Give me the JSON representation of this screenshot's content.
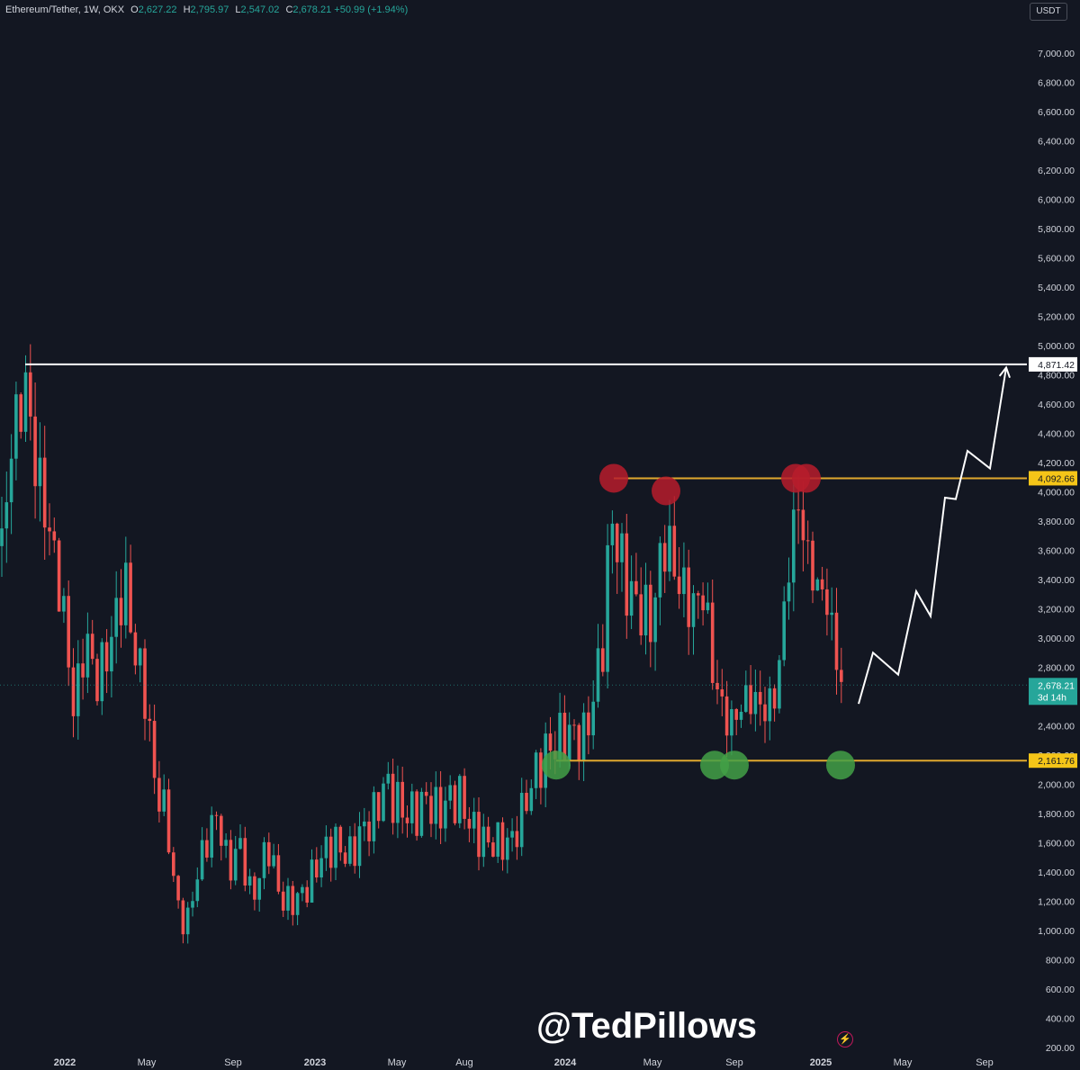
{
  "legend": {
    "symbol": "Ethereum/Tether, 1W, OKX",
    "o_label": "O",
    "o_value": "2,627.22",
    "h_label": "H",
    "h_value": "2,795.97",
    "l_label": "L",
    "l_value": "2,547.02",
    "c_label": "C",
    "c_value": "2,678.21",
    "change": "+50.99 (+1.94%)"
  },
  "currency_button": "USDT",
  "watermark": "@TedPillows",
  "colors": {
    "background": "#131722",
    "up": "#26a69a",
    "down": "#ef5350",
    "level": "#e0a82e",
    "resistance_marker": "#b71c2c",
    "support_marker": "#43a047",
    "ath_line": "#ffffff"
  },
  "chart_data": {
    "type": "candlestick",
    "timeframe": "1W",
    "x_tick_labels": [
      "2022",
      "May",
      "Sep",
      "2023",
      "May",
      "Aug",
      "2024",
      "May",
      "Sep",
      "2025",
      "May",
      "Sep"
    ],
    "y_tick_labels": [
      "200.00",
      "400.00",
      "600.00",
      "800.00",
      "1,000.00",
      "1,200.00",
      "1,400.00",
      "1,600.00",
      "1,800.00",
      "2,000.00",
      "2,200.00",
      "2,400.00",
      "2,600.00",
      "2,800.00",
      "3,000.00",
      "3,200.00",
      "3,400.00",
      "3,600.00",
      "3,800.00",
      "4,000.00",
      "4,200.00",
      "4,400.00",
      "4,600.00",
      "4,800.00",
      "5,000.00",
      "5,200.00",
      "5,400.00",
      "5,600.00",
      "5,800.00",
      "6,000.00",
      "6,200.00",
      "6,400.00",
      "6,600.00",
      "6,800.00",
      "7,000.00"
    ],
    "ylim": [
      200,
      7100
    ],
    "price_path": [
      [
        0,
        3500
      ],
      [
        14,
        4400
      ],
      [
        30,
        4750
      ],
      [
        36,
        4300
      ],
      [
        44,
        4050
      ],
      [
        56,
        3700
      ],
      [
        70,
        3200
      ],
      [
        82,
        2500
      ],
      [
        95,
        3000
      ],
      [
        108,
        2700
      ],
      [
        124,
        3000
      ],
      [
        138,
        3400
      ],
      [
        150,
        2900
      ],
      [
        162,
        2600
      ],
      [
        172,
        2000
      ],
      [
        184,
        1800
      ],
      [
        196,
        1200
      ],
      [
        206,
        1000
      ],
      [
        216,
        1300
      ],
      [
        228,
        1600
      ],
      [
        242,
        1800
      ],
      [
        254,
        1400
      ],
      [
        266,
        1600
      ],
      [
        280,
        1200
      ],
      [
        298,
        1600
      ],
      [
        312,
        1200
      ],
      [
        328,
        1200
      ],
      [
        342,
        1300
      ],
      [
        356,
        1500
      ],
      [
        372,
        1600
      ],
      [
        388,
        1500
      ],
      [
        404,
        1700
      ],
      [
        418,
        1800
      ],
      [
        426,
        2000
      ],
      [
        438,
        1900
      ],
      [
        450,
        1800
      ],
      [
        462,
        1800
      ],
      [
        474,
        1900
      ],
      [
        486,
        1800
      ],
      [
        500,
        1900
      ],
      [
        512,
        1900
      ],
      [
        524,
        1700
      ],
      [
        540,
        1600
      ],
      [
        556,
        1600
      ],
      [
        568,
        1600
      ],
      [
        580,
        1800
      ],
      [
        590,
        2000
      ],
      [
        604,
        2200
      ],
      [
        620,
        2300
      ],
      [
        636,
        2350
      ],
      [
        648,
        2300
      ],
      [
        660,
        2600
      ],
      [
        670,
        3000
      ],
      [
        680,
        3850
      ],
      [
        690,
        3500
      ],
      [
        700,
        3300
      ],
      [
        712,
        3200
      ],
      [
        724,
        3100
      ],
      [
        738,
        3700
      ],
      [
        748,
        3500
      ],
      [
        760,
        3300
      ],
      [
        772,
        3200
      ],
      [
        782,
        3350
      ],
      [
        790,
        2850
      ],
      [
        800,
        2550
      ],
      [
        812,
        2400
      ],
      [
        824,
        2550
      ],
      [
        836,
        2600
      ],
      [
        848,
        2500
      ],
      [
        862,
        2600
      ],
      [
        870,
        3100
      ],
      [
        878,
        3600
      ],
      [
        886,
        3950
      ],
      [
        896,
        3600
      ],
      [
        904,
        3400
      ],
      [
        914,
        3300
      ],
      [
        922,
        3200
      ],
      [
        930,
        2800
      ],
      [
        938,
        2650
      ]
    ],
    "last_price": "2,678.21",
    "last_price_label": "2,678.21",
    "countdown": "3d 14h",
    "levels": [
      {
        "name": "all-time-high",
        "value": 4871.42,
        "label": "4,871.42"
      },
      {
        "name": "resistance",
        "value": 4092.66,
        "label": "4,092.66"
      },
      {
        "name": "support",
        "value": 2161.76,
        "label": "2,161.76"
      }
    ],
    "resistance_touches": 4,
    "support_touches": 4,
    "projection_path": [
      [
        954,
        2550
      ],
      [
        970,
        2900
      ],
      [
        998,
        2750
      ],
      [
        1018,
        3320
      ],
      [
        1034,
        3150
      ],
      [
        1050,
        3960
      ],
      [
        1062,
        3950
      ],
      [
        1075,
        4280
      ],
      [
        1100,
        4160
      ],
      [
        1118,
        4850
      ]
    ],
    "grid": false,
    "legend_position": "top-left"
  }
}
